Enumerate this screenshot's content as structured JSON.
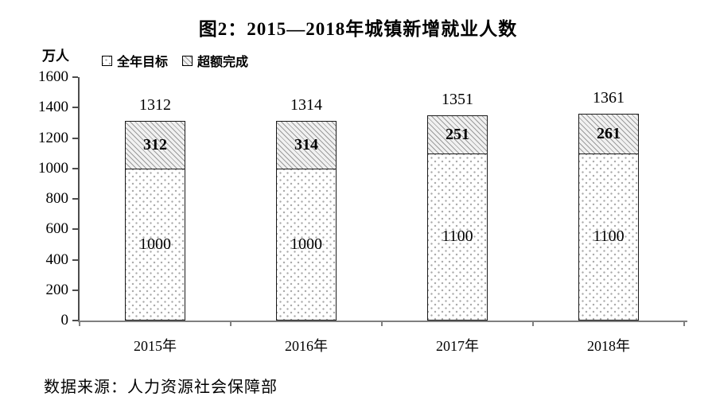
{
  "page": {
    "title": "图2：2015—2018年城镇新增就业人数",
    "unit_label": "万人",
    "source": "数据来源：人力资源社会保障部"
  },
  "chart_data": {
    "type": "bar",
    "stacked": true,
    "title": "图2：2015—2018年城镇新增就业人数",
    "ylabel": "万人",
    "xlabel": "",
    "categories": [
      "2015年",
      "2016年",
      "2017年",
      "2018年"
    ],
    "series": [
      {
        "name": "全年目标",
        "pattern": "dots",
        "values": [
          1000,
          1000,
          1100,
          1100
        ]
      },
      {
        "name": "超额完成",
        "pattern": "hatch",
        "values": [
          312,
          314,
          251,
          261
        ]
      }
    ],
    "totals": [
      1312,
      1314,
      1351,
      1361
    ],
    "ylim": [
      0,
      1600
    ],
    "yticks": [
      0,
      200,
      400,
      600,
      800,
      1000,
      1200,
      1400,
      1600
    ],
    "grid": false,
    "legend_position": "top-left",
    "colors": {
      "text": "#000000",
      "bar_border": "#1a1a1a",
      "pattern_gray": "#9b9b9b",
      "axis_gray": "#7f7f7f"
    },
    "source": "数据来源：人力资源社会保障部"
  }
}
